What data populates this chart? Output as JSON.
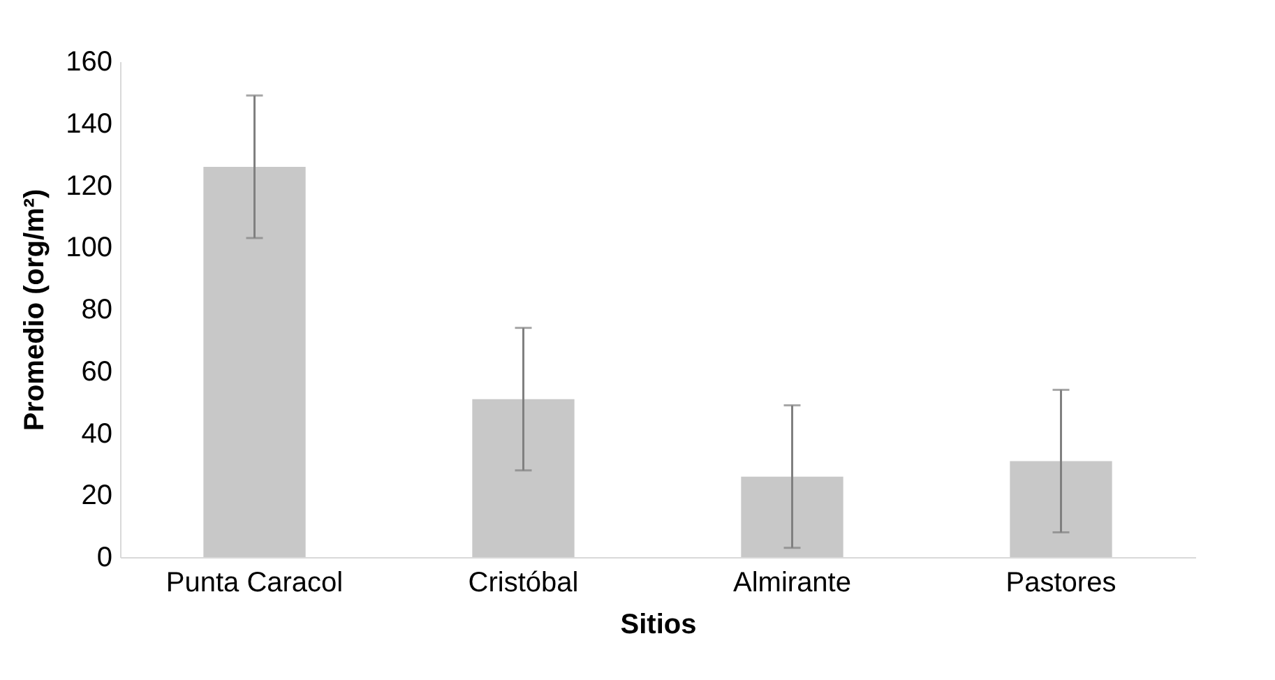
{
  "chart_data": {
    "type": "bar",
    "xlabel": "Sitios",
    "ylabel": "Promedio (org/m²)",
    "categories": [
      "Punta Caracol",
      "Cristóbal",
      "Almirante",
      "Pastores"
    ],
    "values": [
      126,
      51,
      26,
      31
    ],
    "errors": [
      23,
      23,
      23,
      23
    ],
    "color": "#c8c8c8",
    "ylim": [
      0,
      160
    ],
    "yticks": [
      0,
      20,
      40,
      60,
      80,
      100,
      120,
      140,
      160
    ],
    "grid": false
  }
}
